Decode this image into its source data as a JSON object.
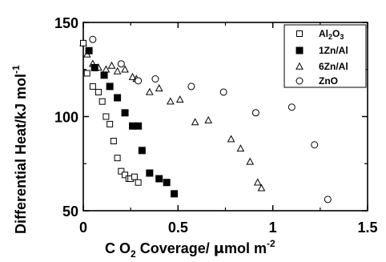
{
  "chart_data": {
    "type": "scatter",
    "xlabel_parts": [
      "C O",
      "2",
      " Coverage/ ",
      "μ",
      "mol m",
      "-2"
    ],
    "ylabel_parts": [
      "Differential Heat/kJ mol",
      "-1"
    ],
    "xlim": [
      0,
      1.5
    ],
    "ylim": [
      50,
      150
    ],
    "xticks": [
      0,
      0.5,
      1,
      1.5
    ],
    "xtick_labels": [
      "0",
      "0.5",
      "1",
      "1.5"
    ],
    "yticks": [
      50,
      100,
      150
    ],
    "ytick_labels": [
      "50",
      "100",
      "150"
    ],
    "grid": false,
    "legend_position": "top-right",
    "series": [
      {
        "name_parts": [
          "Al",
          "2",
          "O",
          "3",
          ""
        ],
        "marker": "square-open",
        "x": [
          0.0,
          0.02,
          0.05,
          0.08,
          0.1,
          0.12,
          0.14,
          0.16,
          0.18,
          0.2,
          0.22,
          0.24,
          0.25,
          0.27,
          0.29
        ],
        "y": [
          139,
          123,
          116,
          113,
          108,
          100,
          96,
          87,
          78,
          71,
          69,
          67,
          67,
          68,
          65
        ]
      },
      {
        "name_parts": [
          "1Zn/Al"
        ],
        "marker": "square-filled",
        "x": [
          0.03,
          0.06,
          0.11,
          0.14,
          0.18,
          0.22,
          0.26,
          0.29,
          0.31,
          0.35,
          0.4,
          0.44,
          0.48
        ],
        "y": [
          135,
          126,
          122,
          116,
          110,
          102,
          95,
          95,
          82,
          70,
          67,
          65,
          59
        ]
      },
      {
        "name_parts": [
          "6Zn/Al"
        ],
        "marker": "triangle-open",
        "x": [
          0.0,
          0.02,
          0.05,
          0.08,
          0.12,
          0.15,
          0.18,
          0.22,
          0.26,
          0.28,
          0.35,
          0.4,
          0.46,
          0.51,
          0.59,
          0.66,
          0.78,
          0.83,
          0.88,
          0.92,
          0.94
        ],
        "y": [
          139,
          133,
          128,
          126,
          125,
          127,
          124,
          125,
          121,
          120,
          113,
          115,
          108,
          109,
          97,
          98,
          88,
          83,
          76,
          65,
          62
        ]
      },
      {
        "name_parts": [
          "ZnO"
        ],
        "marker": "circle-open",
        "x": [
          0.05,
          0.2,
          0.29,
          0.38,
          0.57,
          0.74,
          0.91,
          1.1,
          1.22,
          1.29
        ],
        "y": [
          141,
          128,
          119,
          120,
          116,
          113,
          102,
          105,
          85,
          56
        ]
      }
    ]
  }
}
